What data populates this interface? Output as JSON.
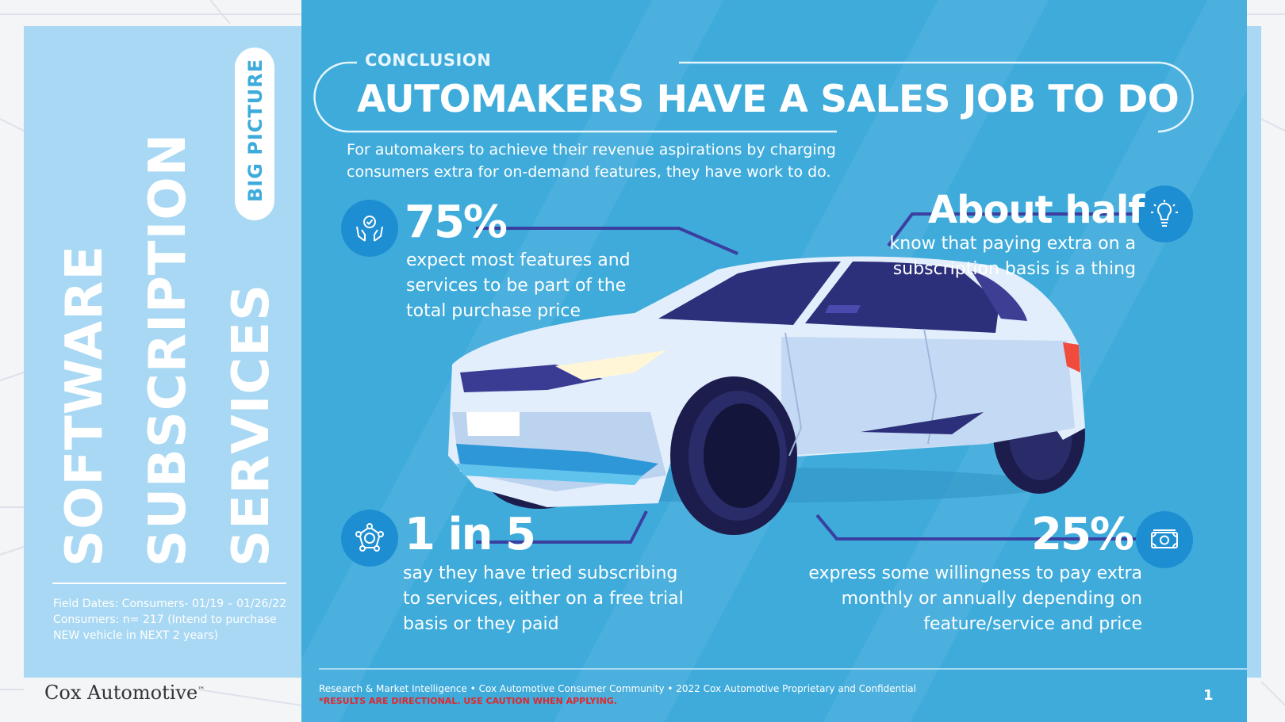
{
  "sidebar": {
    "title_line1": "SOFTWARE",
    "title_line2": "SUBSCRIPTION",
    "title_line3": "SERVICES",
    "badge": "BIG PICTURE",
    "field_dates_line1": "Field Dates: Consumers- 01/19 – 01/26/22",
    "field_dates_line2": "Consumers: n= 217 (Intend to purchase",
    "field_dates_line3": "NEW vehicle in NEXT 2 years)",
    "logo_text": "Cox Automotive",
    "logo_tm": "™"
  },
  "main": {
    "eyebrow": "CONCLUSION",
    "headline": "AUTOMAKERS HAVE A SALES JOB TO DO",
    "intro": "For automakers to achieve their revenue aspirations by charging consumers extra for on-demand features, they have work to do."
  },
  "stats": [
    {
      "value": "75%",
      "text": "expect most features and services to be part of the total purchase price",
      "icon": "hands-check-icon"
    },
    {
      "value": "About half",
      "text": "know that paying extra on a subscription basis is a thing",
      "icon": "lightbulb-icon"
    },
    {
      "value": "1 in 5",
      "text": "say they have  tried subscribing to services, either on a free trial basis or they paid",
      "icon": "network-icon"
    },
    {
      "value": "25%",
      "text": "express some willingness to pay extra monthly or annually depending on feature/service and price",
      "icon": "money-icon"
    }
  ],
  "footer": {
    "credit": "Research & Market Intelligence • Cox Automotive Consumer Community • 2022 Cox Automotive Proprietary and Confidential",
    "warning": "*RESULTS ARE DIRECTIONAL. USE CAUTION WHEN APPLYING.",
    "page_number": "1"
  },
  "colors": {
    "main_blue": "#3eabdb",
    "pale_blue": "#a8d8f3",
    "icon_blue": "#1e8ed3",
    "connector": "#3a3fa0",
    "warning_red": "#e3262b"
  }
}
